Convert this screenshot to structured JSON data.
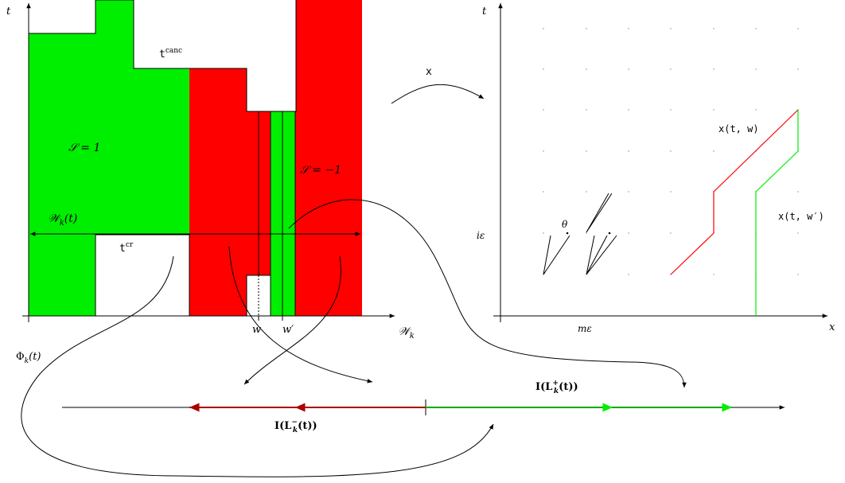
{
  "colors": {
    "positive": "#00ee00",
    "negative": "#ff0000",
    "dark_red": "#aa0000",
    "dark_green": "#00aa00",
    "line": "#000000"
  },
  "left_panel": {
    "axis_t": "t",
    "axis_w": "𝒲",
    "axis_w_sub": "k",
    "label_t_canc_base": "t",
    "label_t_canc_sup": "canc",
    "label_t_cr_base": "t",
    "label_t_cr_sup": "cr",
    "label_s_pos": "𝒮 = 1",
    "label_s_neg": "𝒮 = −1",
    "label_Wkt_main": "𝒲",
    "label_Wkt_sub": "k",
    "label_Wkt_arg": "(t)",
    "label_w": "w",
    "label_wprime": "w′",
    "label_phi_main": "Φ",
    "label_phi_sub": "k",
    "label_phi_arg": "(t)"
  },
  "map_label": "x",
  "right_panel": {
    "axis_t": "t",
    "axis_x": "x",
    "label_ieps": "iε",
    "label_meps": "mε",
    "label_theta": "θ",
    "label_xtw": "x(t, w)",
    "label_xtwp": "x(t, w′)"
  },
  "bottom_line": {
    "label_I_pos_main": "I(L",
    "label_I_pos_sup": "+",
    "label_I_pos_sub": "k",
    "label_I_pos_end": "(t))",
    "label_I_neg_main": "I(L",
    "label_I_neg_sup": "−",
    "label_I_neg_sub": "k",
    "label_I_neg_end": "(t))"
  }
}
